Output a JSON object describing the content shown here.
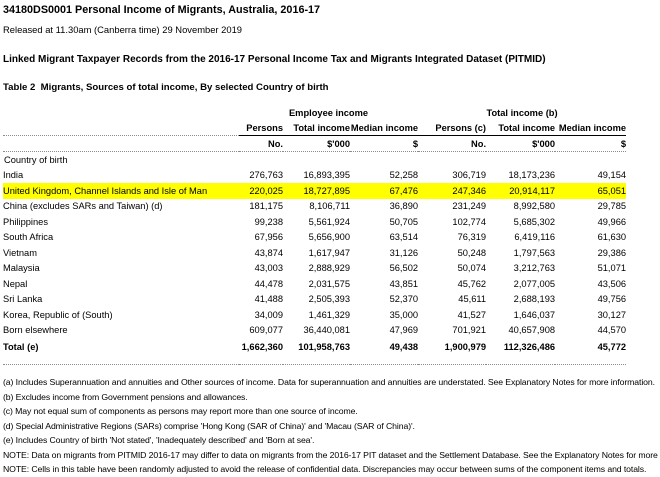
{
  "header": {
    "title": "34180DS0001 Personal Income of Migrants, Australia, 2016-17",
    "released": "Released at 11.30am (Canberra time) 29 November 2019"
  },
  "section": {
    "title": "Linked Migrant Taxpayer Records from the 2016-17 Personal Income Tax and Migrants Integrated Dataset (PITMID)"
  },
  "table": {
    "title": "Table 2  Migrants, Sources of total income, By selected Country of birth",
    "group_headers": [
      "Employee income",
      "Total income (b)"
    ],
    "col_headers": [
      "Persons",
      "Total income",
      "Median income",
      "Persons (c)",
      "Total income",
      "Median income"
    ],
    "units": [
      "No.",
      "$'000",
      "$",
      "No.",
      "$'000",
      "$"
    ],
    "row_section_label": "Country of birth",
    "highlight_color": "#FFFF00",
    "rows": [
      {
        "label": "India",
        "highlight": false,
        "values": [
          "276,763",
          "16,893,395",
          "52,258",
          "306,719",
          "18,173,236",
          "49,154"
        ]
      },
      {
        "label": "United Kingdom, Channel Islands and Isle of Man",
        "highlight": true,
        "values": [
          "220,025",
          "18,727,895",
          "67,476",
          "247,346",
          "20,914,117",
          "65,051"
        ]
      },
      {
        "label": "China (excludes SARs and Taiwan) (d)",
        "highlight": false,
        "values": [
          "181,175",
          "8,106,711",
          "36,890",
          "231,249",
          "8,992,580",
          "29,785"
        ]
      },
      {
        "label": "Philippines",
        "highlight": false,
        "values": [
          "99,238",
          "5,561,924",
          "50,705",
          "102,774",
          "5,685,302",
          "49,966"
        ]
      },
      {
        "label": "South Africa",
        "highlight": false,
        "values": [
          "67,956",
          "5,656,900",
          "63,514",
          "76,319",
          "6,419,116",
          "61,630"
        ]
      },
      {
        "label": "Vietnam",
        "highlight": false,
        "values": [
          "43,874",
          "1,617,947",
          "31,126",
          "50,248",
          "1,797,563",
          "29,386"
        ]
      },
      {
        "label": "Malaysia",
        "highlight": false,
        "values": [
          "43,003",
          "2,888,929",
          "56,502",
          "50,074",
          "3,212,763",
          "51,071"
        ]
      },
      {
        "label": "Nepal",
        "highlight": false,
        "values": [
          "44,478",
          "2,031,575",
          "43,851",
          "45,762",
          "2,077,005",
          "43,506"
        ]
      },
      {
        "label": "Sri Lanka",
        "highlight": false,
        "values": [
          "41,488",
          "2,505,393",
          "52,370",
          "45,611",
          "2,688,193",
          "49,756"
        ]
      },
      {
        "label": "Korea, Republic of (South)",
        "highlight": false,
        "values": [
          "34,009",
          "1,461,329",
          "35,000",
          "41,527",
          "1,646,037",
          "30,127"
        ]
      },
      {
        "label": "Born elsewhere",
        "highlight": false,
        "values": [
          "609,077",
          "36,440,081",
          "47,969",
          "701,921",
          "40,657,908",
          "44,570"
        ]
      }
    ],
    "total": {
      "label": "Total (e)",
      "values": [
        "1,662,360",
        "101,958,763",
        "49,438",
        "1,900,979",
        "112,326,486",
        "45,772"
      ]
    }
  },
  "footnotes": [
    "(a) Includes Superannuation and annuities and Other sources of income. Data for superannuation and annuities are understated. See Explanatory Notes for more information.",
    "(b) Excludes income from Government pensions and allowances.",
    "(c) May not equal sum of components as persons may report more than one source of income.",
    "(d) Special Administrative Regions (SARs) comprise 'Hong Kong (SAR of China)' and 'Macau (SAR of China)'.",
    "(e) Includes Country of birth 'Not stated', 'Inadequately described' and 'Born at sea'."
  ],
  "notes": [
    "NOTE: Data on migrants from PITMID 2016-17 may differ to data on migrants from the 2016-17 PIT dataset and the Settlement Database. See the Explanatory Notes for more details.",
    "NOTE: Cells in this table have been randomly adjusted to avoid the release of confidential data.  Discrepancies may occur between sums of the component items and totals."
  ]
}
